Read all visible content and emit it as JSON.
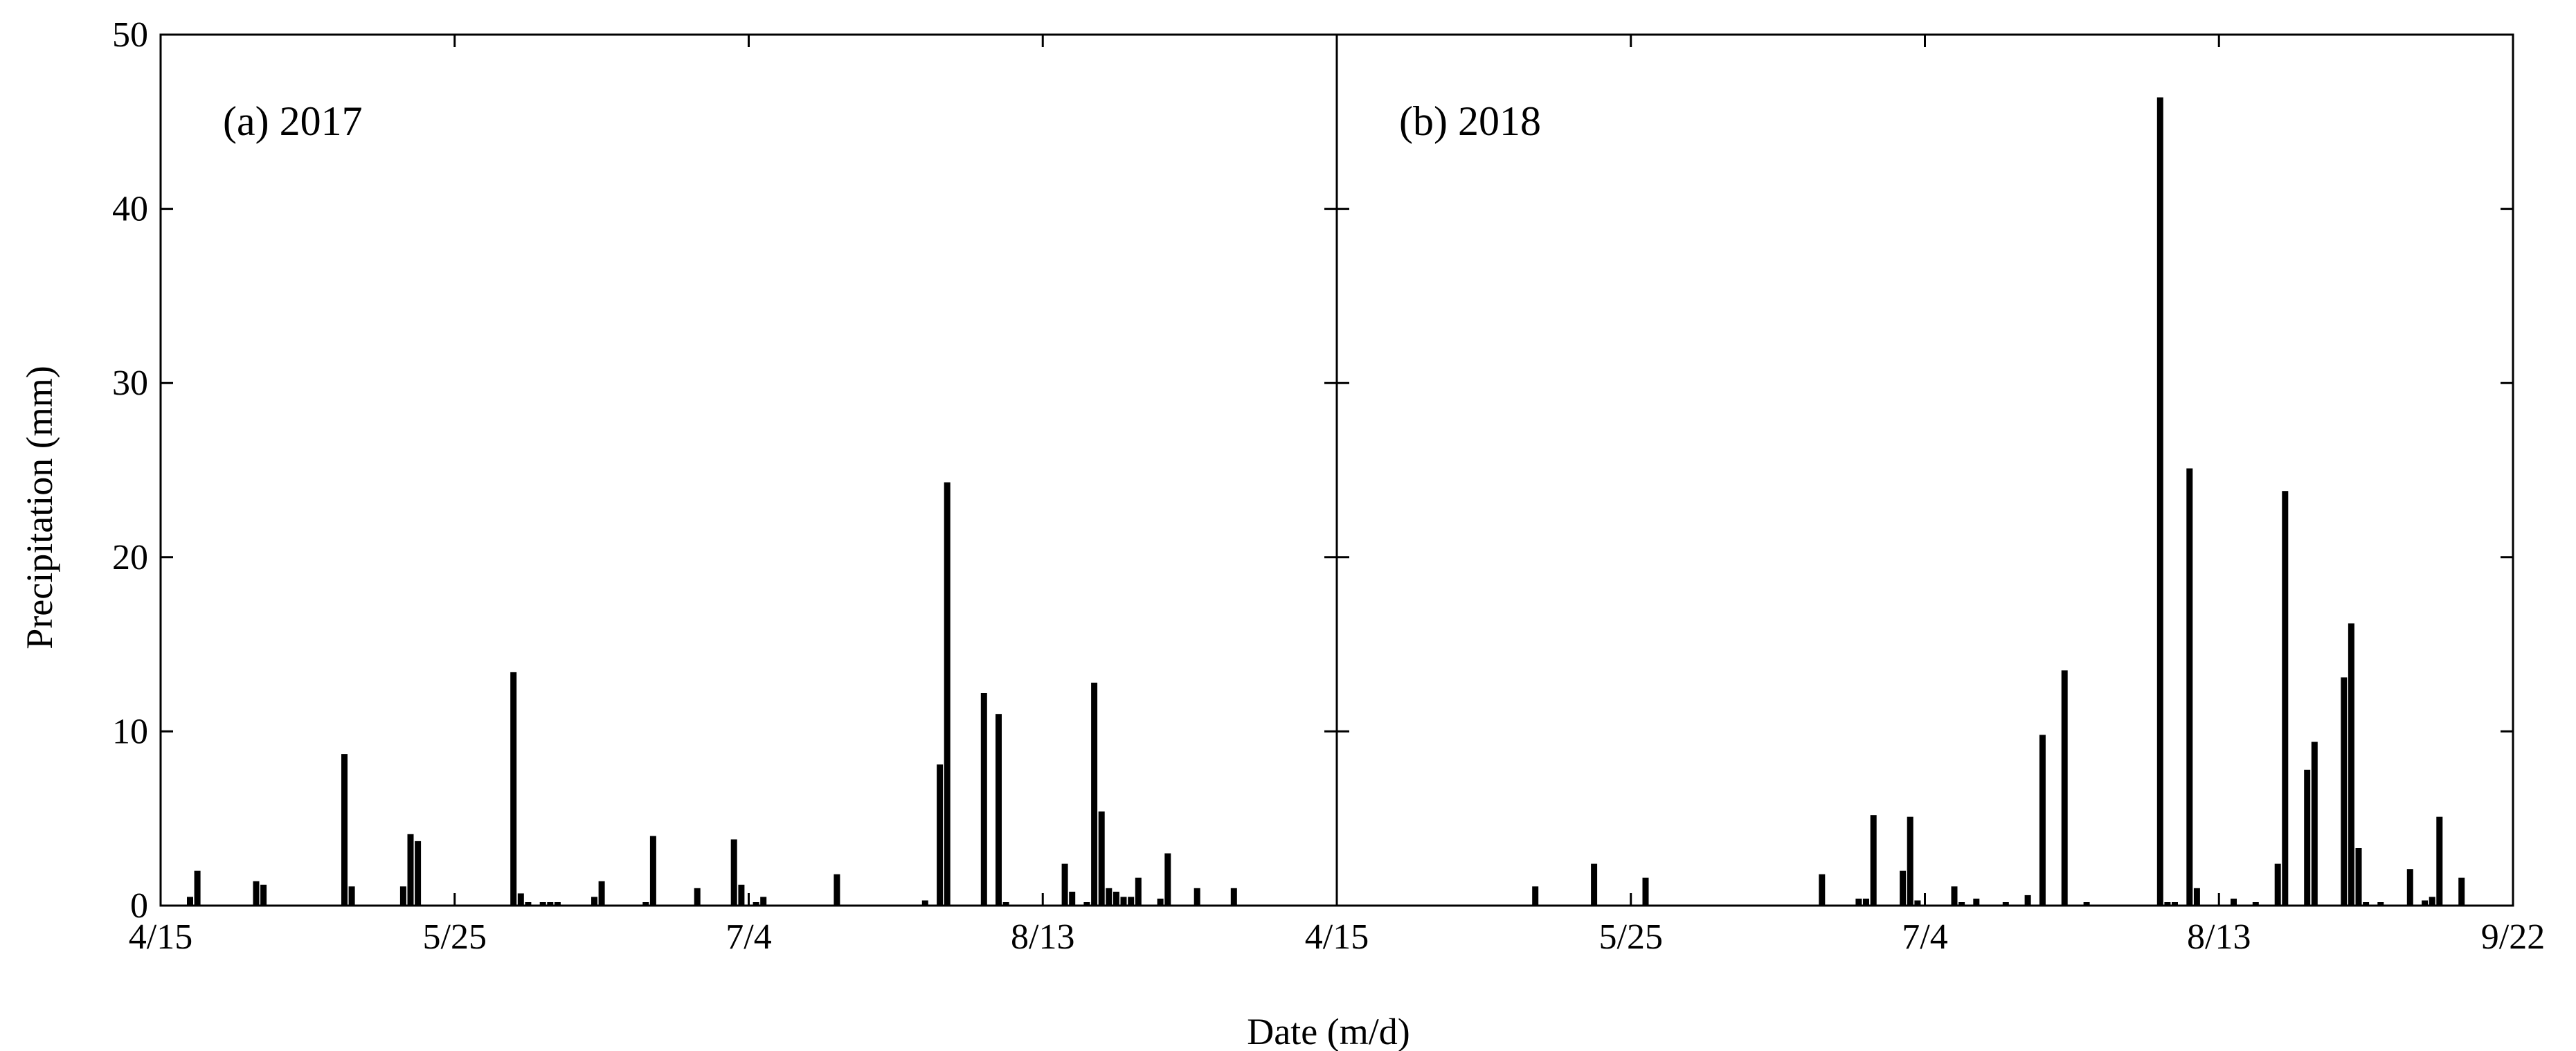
{
  "chart_data": {
    "type": "bar",
    "xlabel": "Date (m/d)",
    "ylabel": "Precipitation (mm)",
    "ylim": [
      0,
      50
    ],
    "yticks": [
      0,
      10,
      20,
      30,
      40,
      50
    ],
    "grid": false,
    "legend": "none",
    "bar_color": "#000000",
    "panels": [
      {
        "label": "(a) 2017",
        "xlim": [
          "4/15",
          "9/22"
        ],
        "xticks": [
          "4/15",
          "5/25",
          "7/4",
          "8/13"
        ],
        "series": [
          {
            "x": [
              "4/19",
              "4/20",
              "4/28",
              "4/29",
              "5/10",
              "5/11",
              "5/18",
              "5/19",
              "5/20",
              "6/2",
              "6/3",
              "6/4",
              "6/6",
              "6/7",
              "6/8",
              "6/13",
              "6/14",
              "6/20",
              "6/21",
              "6/27",
              "7/2",
              "7/3",
              "7/5",
              "7/6",
              "7/16",
              "7/28",
              "7/30",
              "7/31",
              "8/5",
              "8/7",
              "8/8",
              "8/16",
              "8/17",
              "8/19",
              "8/20",
              "8/21",
              "8/22",
              "8/23",
              "8/24",
              "8/25",
              "8/26",
              "8/29",
              "8/30",
              "9/3",
              "9/8"
            ],
            "values": [
              0.5,
              2.0,
              1.4,
              1.2,
              8.7,
              1.1,
              1.1,
              4.1,
              3.7,
              13.4,
              0.7,
              0.2,
              0.2,
              0.2,
              0.2,
              0.5,
              1.4,
              0.2,
              4.0,
              1.0,
              3.8,
              1.2,
              0.2,
              0.5,
              1.8,
              0.3,
              8.1,
              24.3,
              12.2,
              11.0,
              0.2,
              2.4,
              0.8,
              0.2,
              12.8,
              5.4,
              1.0,
              0.8,
              0.5,
              0.5,
              1.6,
              0.4,
              3.0,
              1.0,
              1.0
            ]
          }
        ]
      },
      {
        "label": "(b) 2018",
        "xlim": [
          "4/15",
          "9/22"
        ],
        "xticks": [
          "4/15",
          "5/25",
          "7/4",
          "8/13",
          "9/22"
        ],
        "series": [
          {
            "x": [
              "5/12",
              "5/20",
              "5/27",
              "6/20",
              "6/25",
              "6/26",
              "6/27",
              "7/1",
              "7/2",
              "7/3",
              "7/8",
              "7/9",
              "7/11",
              "7/15",
              "7/18",
              "7/20",
              "7/23",
              "7/26",
              "8/5",
              "8/6",
              "8/7",
              "8/9",
              "8/10",
              "8/15",
              "8/18",
              "8/21",
              "8/22",
              "8/25",
              "8/26",
              "8/30",
              "8/31",
              "9/1",
              "9/2",
              "9/4",
              "9/8",
              "9/10",
              "9/11",
              "9/12",
              "9/15"
            ],
            "values": [
              1.1,
              2.4,
              1.6,
              1.8,
              0.4,
              0.4,
              5.2,
              2.0,
              5.1,
              0.3,
              1.1,
              0.2,
              0.4,
              0.2,
              0.6,
              9.8,
              13.5,
              0.2,
              46.4,
              0.2,
              0.2,
              25.1,
              1.0,
              0.4,
              0.2,
              2.4,
              23.8,
              7.8,
              9.4,
              13.1,
              16.2,
              3.3,
              0.2,
              0.2,
              2.1,
              0.3,
              0.5,
              5.1,
              1.6
            ]
          }
        ]
      }
    ]
  }
}
